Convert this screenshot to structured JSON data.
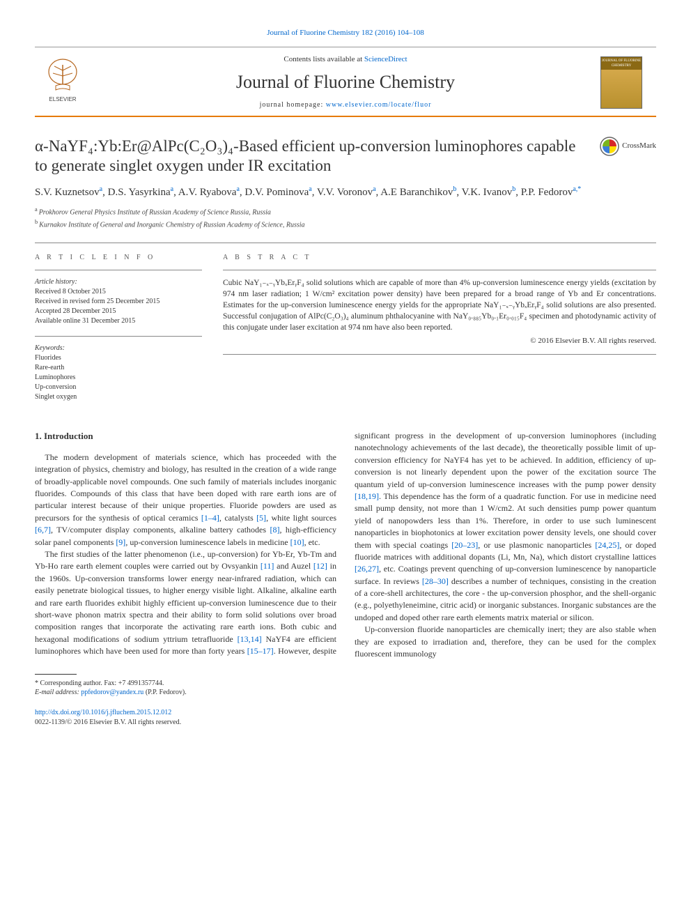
{
  "top_citation": "Journal of Fluorine Chemistry 182 (2016) 104–108",
  "masthead": {
    "contents_prefix": "Contents lists available at ",
    "contents_link": "ScienceDirect",
    "journal_name": "Journal of Fluorine Chemistry",
    "homepage_prefix": "journal homepage: ",
    "homepage_link": "www.elsevier.com/locate/fluor",
    "publisher_logo_label": "ELSEVIER",
    "cover_label": "JOURNAL OF FLUORINE CHEMISTRY",
    "accent_color": "#e67a00",
    "cover_bg": "#b8902e"
  },
  "crossmark_label": "CrossMark",
  "title": "α-NaYF₄:Yb:Er@AlPc(C₂O₃)₄-Based efficient up-conversion luminophores capable to generate singlet oxygen under IR excitation",
  "authors_html": "S.V. Kuznetsov<sup>a</sup>, D.S. Yasyrkina<sup>a</sup>, A.V. Ryabova<sup>a</sup>, D.V. Pominova<sup>a</sup>, V.V. Voronov<sup>a</sup>, A.E Baranchikov<sup>b</sup>, V.K. Ivanov<sup>b</sup>, P.P. Fedorov<sup>a,*</sup>",
  "authors": [
    {
      "name": "S.V. Kuznetsov",
      "aff": "a"
    },
    {
      "name": "D.S. Yasyrkina",
      "aff": "a"
    },
    {
      "name": "A.V. Ryabova",
      "aff": "a"
    },
    {
      "name": "D.V. Pominova",
      "aff": "a"
    },
    {
      "name": "V.V. Voronov",
      "aff": "a"
    },
    {
      "name": "A.E Baranchikov",
      "aff": "b"
    },
    {
      "name": "V.K. Ivanov",
      "aff": "b"
    },
    {
      "name": "P.P. Fedorov",
      "aff": "a,*"
    }
  ],
  "affiliations": {
    "a": "Prokhorov General Physics Institute of Russian Academy of Science Russia, Russia",
    "b": "Kurnakov Institute of General and Inorganic Chemistry of Russian Academy of Science, Russia"
  },
  "article_info": {
    "heading": "A R T I C L E  I N F O",
    "history_label": "Article history:",
    "history": [
      "Received 8 October 2015",
      "Received in revised form 25 December 2015",
      "Accepted 28 December 2015",
      "Available online 31 December 2015"
    ],
    "keywords_label": "Keywords:",
    "keywords": [
      "Fluorides",
      "Rare-earth",
      "Luminophores",
      "Up-conversion",
      "Singlet oxygen"
    ]
  },
  "abstract": {
    "heading": "A B S T R A C T",
    "text": "Cubic NaY₁₋ₓ₋ᵧYbₓErᵧF₄ solid solutions which are capable of more than 4% up-conversion luminescence energy yields (excitation by 974 nm laser radiation; 1 W/cm² excitation power density) have been prepared for a broad range of Yb and Er concentrations. Estimates for the up-conversion luminescence energy yields for the appropriate NaY₁₋ₓ₋ᵧYbₓErᵧF₄ solid solutions are also presented. Successful conjugation of AlPc(C₂O₃)₄ aluminum phthalocyanine with NaY₀.₈₈₅Yb₀.₁Er₀.₀₁₅F₄ specimen and photodynamic activity of this conjugate under laser excitation at 974 nm have also been reported.",
    "copyright": "© 2016 Elsevier B.V. All rights reserved."
  },
  "section1_heading": "1. Introduction",
  "paragraphs": {
    "p1a": "The modern development of materials science, which has proceeded with the integration of physics, chemistry and biology, has resulted in the creation of a wide range of broadly-applicable novel compounds. One such family of materials includes inorganic fluorides. Compounds of this class that have been doped with rare earth ions are of particular interest because of their unique properties. Fluoride powders are used as precursors for the synthesis of optical ceramics ",
    "p1_ref1": "[1–4]",
    "p1b": ", catalysts ",
    "p1_ref2": "[5]",
    "p1c": ", white light sources ",
    "p1_ref3": "[6,7]",
    "p1d": ", TV/computer display components, alkaline battery cathodes ",
    "p1_ref4": "[8]",
    "p1e": ", high-efficiency solar panel components ",
    "p1_ref5": "[9]",
    "p1f": ", up-conversion luminescence labels in medicine ",
    "p1_ref6": "[10]",
    "p1g": ", etc.",
    "p2a": "The first studies of the latter phenomenon (i.e., up-conversion) for Yb-Er, Yb-Tm and Yb-Ho rare earth element couples were carried out by Ovsyankin ",
    "p2_ref1": "[11]",
    "p2b": " and Auzel ",
    "p2_ref2": "[12]",
    "p2c": " in the 1960s. Up-conversion transforms lower energy near-infrared radiation, which can easily penetrate biological tissues, to higher energy visible light. Alkaline, alkaline earth and rare earth fluorides exhibit highly efficient up-conversion luminescence due to their short-wave phonon matrix spectra and their ability to form solid solutions over broad composition ranges that incorporate the activating rare earth ions. Both cubic and hexagonal modifications ",
    "p3a": "of sodium yttrium tetrafluoride ",
    "p3_ref1": "[13,14]",
    "p3b": " NaYF4 are efficient luminophores which have been used for more than forty years ",
    "p3_ref2": "[15–17]",
    "p3c": ". However, despite significant progress in the development of up-conversion luminophores (including nanotechnology achievements of the last decade), the theoretically possible limit of up-conversion efficiency for NaYF4 has yet to be achieved. In addition, efficiency of up-conversion is not linearly dependent upon the power of the excitation source The quantum yield of up-conversion luminescence increases with the pump power density ",
    "p3_ref3": "[18,19]",
    "p3d": ". This dependence has the form of a quadratic function. For use in medicine need small pump density, not more than 1 W/cm2. At such densities pump power quantum yield of nanopowders less than 1%. Therefore, in order to use such luminescent nanoparticles in biophotonics at lower excitation power density levels, one should cover them with special coatings ",
    "p3_ref4": "[20–23]",
    "p3e": ", or use plasmonic nanoparticles ",
    "p3_ref5": "[24,25]",
    "p3f": ", or doped fluoride matrices with additional dopants (Li, Mn, Na), which distort crystalline lattices ",
    "p3_ref6": "[26,27]",
    "p3g": ", etc. Coatings prevent quenching of up-conversion luminescence by nanoparticle surface. In reviews ",
    "p3_ref7": "[28–30]",
    "p3h": " describes a number of techniques, consisting in the creation of a core-shell architectures, the core - the up-conversion phosphor, and the shell-organic (e.g., polyethyleneimine, citric acid) or inorganic substances. Inorganic substances are the undoped and doped other rare earth elements matrix material or silicon.",
    "p4": "Up-conversion fluoride nanoparticles are chemically inert; they are also stable when they are exposed to irradiation and, therefore, they can be used for the complex fluorescent immunology"
  },
  "footnote": {
    "corr_label": "* Corresponding author. Fax: +7 4991357744.",
    "email_label": "E-mail address:",
    "email": "ppfedorov@yandex.ru",
    "email_who": " (P.P. Fedorov)."
  },
  "doi": {
    "url": "http://dx.doi.org/10.1016/j.jfluchem.2015.12.012",
    "issn_line": "0022-1139/© 2016 Elsevier B.V. All rights reserved."
  },
  "link_color": "#0066cc"
}
